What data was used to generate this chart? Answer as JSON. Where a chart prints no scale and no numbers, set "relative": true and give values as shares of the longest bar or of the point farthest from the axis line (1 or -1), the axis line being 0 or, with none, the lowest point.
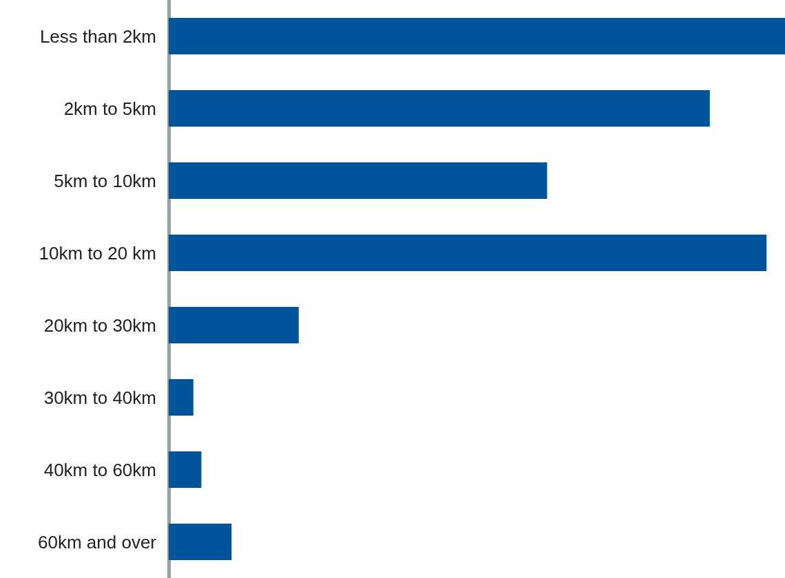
{
  "chart_data": {
    "type": "bar",
    "orientation": "horizontal",
    "relative": true,
    "categories": [
      "Less than 2km",
      "2km to 5km",
      "5km to 10km",
      "10km to 20 km",
      "20km to 30km",
      "30km to 40km",
      "40km to 60km",
      "60km and over"
    ],
    "values": [
      1,
      0.878,
      0.614,
      0.97,
      0.211,
      0.04,
      0.053,
      0.102
    ],
    "color": "#00549a"
  }
}
